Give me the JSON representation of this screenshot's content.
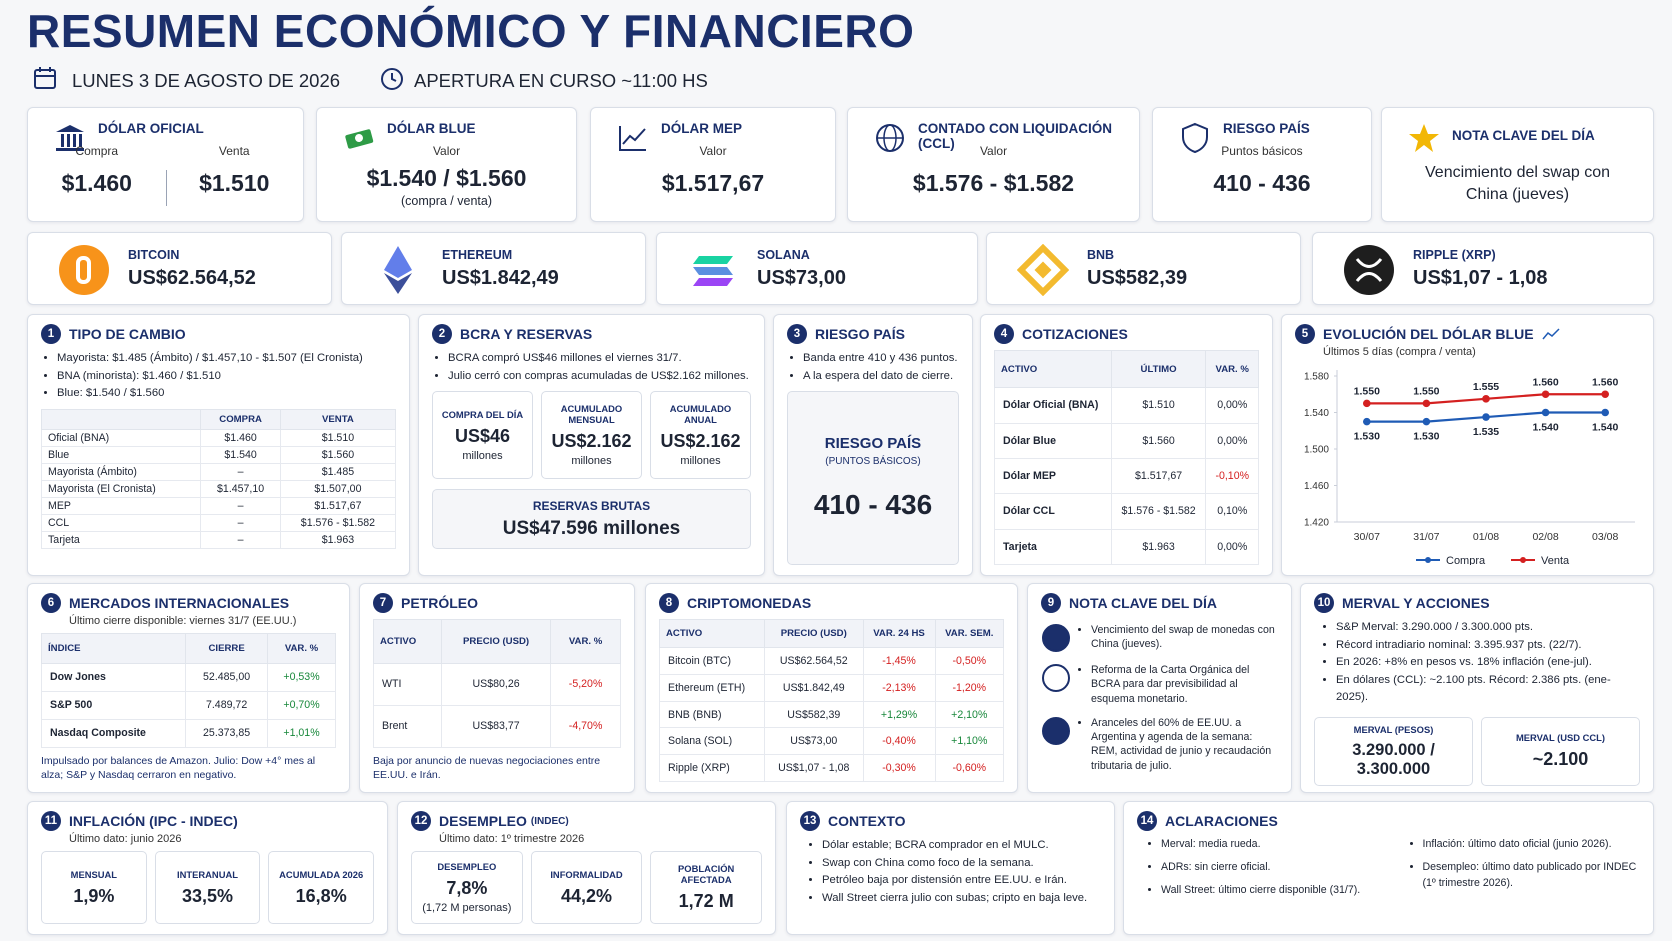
{
  "header": {
    "title": "RESUMEN ECONÓMICO Y FINANCIERO",
    "date": "LUNES 3 DE AGOSTO DE 2026",
    "opening": "APERTURA EN CURSO ~11:00 HS"
  },
  "top_cards": [
    {
      "title": "DÓLAR OFICIAL",
      "labels": [
        "Compra",
        "Venta"
      ],
      "values": [
        "$1.460",
        "$1.510"
      ]
    },
    {
      "title": "DÓLAR BLUE",
      "sub": "Valor",
      "value": "$1.540 / $1.560",
      "note": "(compra / venta)"
    },
    {
      "title": "DÓLAR MEP",
      "sub": "Valor",
      "value": "$1.517,67"
    },
    {
      "title": "CONTADO CON LIQUIDACIÓN (CCL)",
      "sub": "Valor",
      "value": "$1.576 - $1.582"
    },
    {
      "title": "RIESGO PAÍS",
      "sub": "Puntos básicos",
      "value": "410 - 436"
    },
    {
      "title": "NOTA CLAVE DEL DÍA",
      "text": "Vencimiento del swap con China (jueves)"
    }
  ],
  "crypto_cards": [
    {
      "name": "BITCOIN",
      "value": "US$62.564,52"
    },
    {
      "name": "ETHEREUM",
      "value": "US$1.842,49"
    },
    {
      "name": "SOLANA",
      "value": "US$73,00"
    },
    {
      "name": "BNB",
      "value": "US$582,39"
    },
    {
      "name": "RIPPLE (XRP)",
      "value": "US$1,07 - 1,08"
    }
  ],
  "panels": [
    {
      "number": "1",
      "title": "TIPO DE CAMBIO",
      "bullets": [
        "Mayorista: $1.485 (Ámbito)  /  $1.457,10 - $1.507 (El Cronista)",
        "BNA (minorista): $1.460 / $1.510",
        "Blue: $1.540 / $1.560"
      ],
      "table": {
        "headers": [
          "COMPRA",
          "VENTA"
        ],
        "rows": [
          [
            "Oficial (BNA)",
            "$1.460",
            "$1.510"
          ],
          [
            "Blue",
            "$1.540",
            "$1.560"
          ],
          [
            "Mayorista (Ámbito)",
            "–",
            "$1.485"
          ],
          [
            "Mayorista (El Cronista)",
            "$1.457,10",
            "$1.507,00"
          ],
          [
            "MEP",
            "–",
            "$1.517,67"
          ],
          [
            "CCL",
            "–",
            "$1.576 - $1.582"
          ],
          [
            "Tarjeta",
            "–",
            "$1.963"
          ]
        ]
      }
    },
    {
      "number": "2",
      "title": "BCRA Y RESERVAS",
      "bullets": [
        "BCRA compró US$46 millones el viernes 31/7.",
        "Julio cerró con compras acumuladas de US$2.162 millones."
      ],
      "boxes": [
        {
          "label": "COMPRA DEL DÍA",
          "value": "US$46",
          "note": "millones"
        },
        {
          "label": "ACUMULADO MENSUAL",
          "value": "US$2.162",
          "note": "millones"
        },
        {
          "label": "ACUMULADO ANUAL",
          "value": "US$2.162",
          "note": "millones"
        }
      ],
      "feature": {
        "label": "RESERVAS BRUTAS",
        "value": "US$47.596 millones"
      }
    },
    {
      "number": "3",
      "title": "RIESGO PAÍS",
      "bullets": [
        "Banda entre 410 y 436 puntos.",
        "A la espera del dato de cierre."
      ],
      "feature": {
        "label": "RIESGO PAÍS",
        "sublabel": "(PUNTOS BÁSICOS)",
        "value": "410 - 436"
      }
    },
    {
      "number": "4",
      "title": "COTIZACIONES",
      "table": {
        "headers": [
          "ACTIVO",
          "ÚLTIMO",
          "VAR. %"
        ],
        "rows": [
          [
            "Dólar Oficial (BNA)",
            "$1.510",
            "0,00%"
          ],
          [
            "Dólar Blue",
            "$1.560",
            "0,00%"
          ],
          [
            "Dólar MEP",
            "$1.517,67",
            "-0,10%"
          ],
          [
            "Dólar CCL",
            "$1.576 - $1.582",
            "0,10%"
          ],
          [
            "Tarjeta",
            "$1.963",
            "0,00%"
          ]
        ]
      }
    },
    {
      "number": "6",
      "title": "MERCADOS INTERNACIONALES",
      "subtitle": "Último cierre disponible: viernes 31/7 (EE.UU.)",
      "table": {
        "headers": [
          "ÍNDICE",
          "CIERRE",
          "VAR. %"
        ],
        "rows": [
          [
            "Dow Jones",
            "52.485,00",
            "+0,53%"
          ],
          [
            "S&P 500",
            "7.489,72",
            "+0,70%"
          ],
          [
            "Nasdaq Composite",
            "25.373,85",
            "+1,01%"
          ]
        ]
      },
      "note": "Impulsado por balances de Amazon. Julio: Dow +4° mes al alza; S&P y Nasdaq cerraron en negativo."
    },
    {
      "number": "7",
      "title": "PETRÓLEO",
      "table": {
        "headers": [
          "ACTIVO",
          "PRECIO (USD)",
          "VAR. %"
        ],
        "rows": [
          [
            "WTI",
            "US$80,26",
            "-5,20%"
          ],
          [
            "Brent",
            "US$83,77",
            "-4,70%"
          ]
        ]
      },
      "note": "Baja por anuncio de nuevas negociaciones entre EE.UU. e Irán."
    },
    {
      "number": "8",
      "title": "CRIPTOMONEDAS",
      "table": {
        "headers": [
          "ACTIVO",
          "PRECIO (USD)",
          "VAR. 24 HS",
          "VAR. SEM."
        ],
        "rows": [
          [
            "Bitcoin (BTC)",
            "US$62.564,52",
            "-1,45%",
            "-0,50%"
          ],
          [
            "Ethereum (ETH)",
            "US$1.842,49",
            "-2,13%",
            "-1,20%"
          ],
          [
            "BNB (BNB)",
            "US$582,39",
            "+1,29%",
            "+2,10%"
          ],
          [
            "Solana (SOL)",
            "US$73,00",
            "-0,40%",
            "+1,10%"
          ],
          [
            "Ripple (XRP)",
            "US$1,07 - 1,08",
            "-0,30%",
            "-0,60%"
          ]
        ]
      }
    },
    {
      "number": "9",
      "title": "NOTA CLAVE DEL DÍA",
      "items": [
        "Vencimiento del swap de monedas con China (jueves).",
        "Reforma de la Carta Orgánica del BCRA para dar previsibilidad al esquema monetario.",
        "Aranceles del 60% de EE.UU. a Argentina y agenda de la semana: REM, actividad de junio y recaudación tributaria de julio."
      ]
    },
    {
      "number": "10",
      "title": "MERVAL Y ACCIONES",
      "bullets": [
        "S&P Merval: 3.290.000 / 3.300.000 pts.",
        "Récord intradiario nominal: 3.395.937 pts. (22/7).",
        "En 2026: +8% en pesos vs. 18% inflación (ene-jul).",
        "En dólares (CCL): ~2.100 pts. Récord: 2.386 pts. (ene-2025)."
      ],
      "boxes": [
        {
          "label": "MERVAL (PESOS)",
          "value": "3.290.000 / 3.300.000"
        },
        {
          "label": "MERVAL (USD CCL)",
          "value": "~2.100"
        }
      ]
    },
    {
      "number": "11",
      "title": "INFLACIÓN (IPC - INDEC)",
      "subtitle": "Último dato: junio 2026",
      "boxes": [
        {
          "label": "MENSUAL",
          "value": "1,9%"
        },
        {
          "label": "INTERANUAL",
          "value": "33,5%"
        },
        {
          "label": "ACUMULADA 2026",
          "value": "16,8%"
        }
      ]
    },
    {
      "number": "12",
      "title": "DESEMPLEO",
      "title_small": "(INDEC)",
      "subtitle": "Último dato: 1º trimestre 2026",
      "boxes": [
        {
          "label": "DESEMPLEO",
          "value": "7,8%",
          "note": "(1,72 M personas)"
        },
        {
          "label": "INFORMALIDAD",
          "value": "44,2%"
        },
        {
          "label": "POBLACIÓN AFECTADA",
          "value": "1,72 M"
        }
      ]
    },
    {
      "number": "13",
      "title": "CONTEXTO",
      "bullets": [
        "Dólar estable; BCRA comprador en el MULC.",
        "Swap con China como foco de la semana.",
        "Petróleo baja por distensión entre EE.UU. e Irán.",
        "Wall Street cierra julio con subas; cripto en baja leve."
      ]
    },
    {
      "number": "14",
      "title": "ACLARACIONES",
      "columns": [
        [
          "Merval: media rueda.",
          "ADRs: sin cierre oficial.",
          "Wall Street: último cierre disponible (31/7)."
        ],
        [
          "Inflación: último dato oficial (junio 2026).",
          "Desempleo: último dato publicado por INDEC (1º trimestre 2026)."
        ]
      ]
    }
  ],
  "chart_data": {
    "type": "line",
    "number": "5",
    "title": "EVOLUCIÓN DEL DÓLAR BLUE",
    "subtitle": "Últimos 5 días (compra / venta)",
    "categories": [
      "30/07",
      "31/07",
      "01/08",
      "02/08",
      "03/08"
    ],
    "series": [
      {
        "name": "Compra",
        "color": "#1f5bb5",
        "values": [
          1530,
          1530,
          1535,
          1540,
          1540
        ],
        "value_labels": [
          "1.530",
          "1.530",
          "1.535",
          "1.540",
          "1.540"
        ]
      },
      {
        "name": "Venta",
        "color": "#d42020",
        "values": [
          1550,
          1550,
          1555,
          1560,
          1560
        ],
        "value_labels": [
          "1.550",
          "1.550",
          "1.555",
          "1.560",
          "1.560"
        ]
      }
    ],
    "ylim": [
      1420,
      1580
    ],
    "yticks": [
      {
        "value": 1420,
        "label": "1.420"
      },
      {
        "value": 1460,
        "label": "1.460"
      },
      {
        "value": 1500,
        "label": "1.500"
      },
      {
        "value": 1540,
        "label": "1.540"
      },
      {
        "value": 1580,
        "label": "1.580"
      }
    ],
    "grid": false,
    "legend": "bottom"
  }
}
